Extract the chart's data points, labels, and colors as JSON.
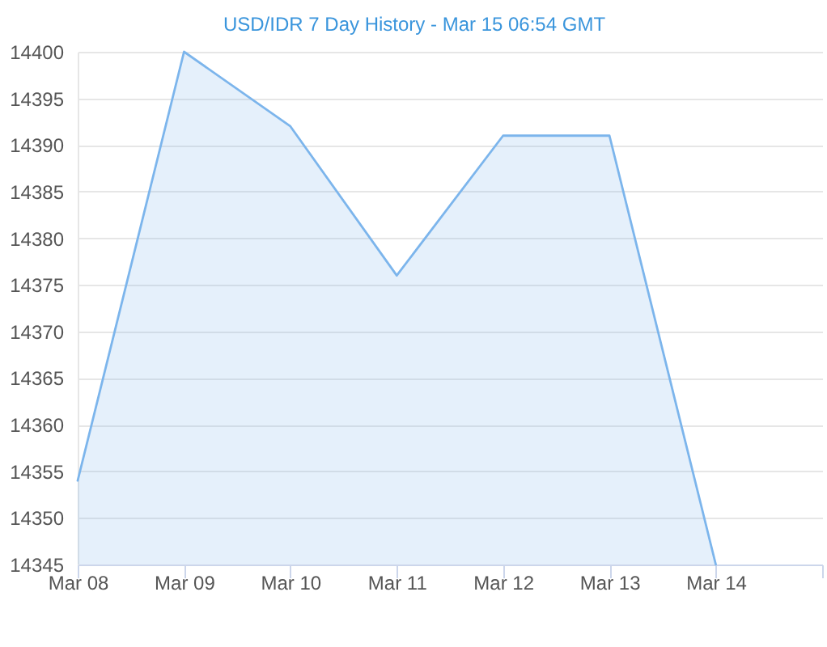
{
  "chart_data": {
    "type": "area",
    "title": "USD/IDR 7 Day History - Mar 15 06:54 GMT",
    "x": [
      "--03-08",
      "--03-09",
      "--03-10",
      "--03-11",
      "--03-12",
      "--03-13",
      "--03-14"
    ],
    "series": [
      {
        "color": "#7cb5ec",
        "values": [
          14354,
          14400,
          14392,
          14376,
          14391,
          14391,
          14345
        ]
      }
    ],
    "xlim": [
      "--03-08",
      "--03-15"
    ],
    "xticks": [
      {
        "value": "--03-08",
        "label": "Mar 08"
      },
      {
        "value": "--03-09",
        "label": "Mar 09"
      },
      {
        "value": "--03-10",
        "label": "Mar 10"
      },
      {
        "value": "--03-11",
        "label": "Mar 11"
      },
      {
        "value": "--03-12",
        "label": "Mar 12"
      },
      {
        "value": "--03-13",
        "label": "Mar 13"
      },
      {
        "value": "--03-14",
        "label": "Mar 14"
      },
      {
        "value": "--03-15",
        "label": null
      }
    ],
    "ylim": [
      14345,
      14400
    ],
    "yticks": [
      14345,
      14350,
      14355,
      14360,
      14365,
      14370,
      14375,
      14380,
      14385,
      14390,
      14395,
      14400
    ],
    "grid": "y"
  }
}
